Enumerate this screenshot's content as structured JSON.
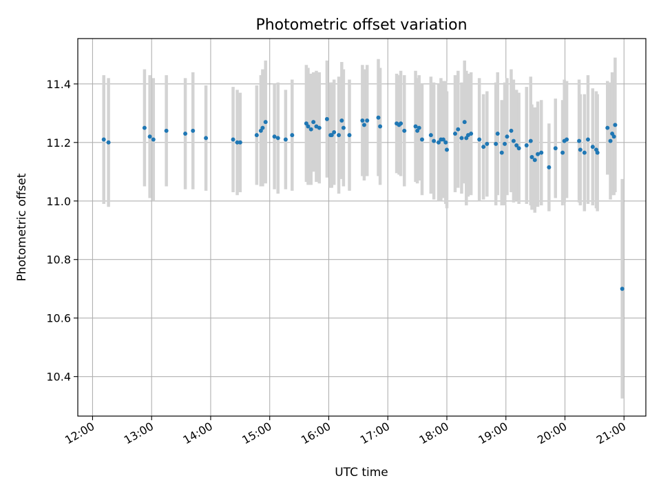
{
  "chart_data": {
    "type": "scatter",
    "title": "Photometric offset variation",
    "xlabel": "UTC time",
    "ylabel": "Photometric offset",
    "x_unit": "hours UTC",
    "xlim": [
      11.75,
      21.37
    ],
    "ylim": [
      10.265,
      11.555
    ],
    "xticks": [
      12,
      13,
      14,
      15,
      16,
      17,
      18,
      19,
      20,
      21
    ],
    "xtick_labels": [
      "12:00",
      "13:00",
      "14:00",
      "15:00",
      "16:00",
      "17:00",
      "18:00",
      "19:00",
      "20:00",
      "21:00"
    ],
    "yticks": [
      10.4,
      10.6,
      10.8,
      11.0,
      11.2,
      11.4
    ],
    "ytick_labels": [
      "10.4",
      "10.6",
      "10.8",
      "11.0",
      "11.2",
      "11.4"
    ],
    "grid": true,
    "point_color": "#1f77b4",
    "errorbar_color": "#d3d3d3",
    "points": [
      [
        12.19,
        11.21,
        0.22
      ],
      [
        12.27,
        11.2,
        0.22
      ],
      [
        12.88,
        11.25,
        0.2
      ],
      [
        12.97,
        11.22,
        0.21
      ],
      [
        13.03,
        11.21,
        0.21
      ],
      [
        13.25,
        11.24,
        0.19
      ],
      [
        13.57,
        11.23,
        0.19
      ],
      [
        13.7,
        11.24,
        0.2
      ],
      [
        13.92,
        11.215,
        0.18
      ],
      [
        14.38,
        11.21,
        0.18
      ],
      [
        14.45,
        11.2,
        0.18
      ],
      [
        14.5,
        11.2,
        0.17
      ],
      [
        14.78,
        11.225,
        0.17
      ],
      [
        14.85,
        11.24,
        0.19
      ],
      [
        14.88,
        11.25,
        0.2
      ],
      [
        14.93,
        11.27,
        0.21
      ],
      [
        15.08,
        11.22,
        0.18
      ],
      [
        15.14,
        11.215,
        0.19
      ],
      [
        15.27,
        11.21,
        0.17
      ],
      [
        15.38,
        11.225,
        0.19
      ],
      [
        15.62,
        11.265,
        0.2
      ],
      [
        15.65,
        11.255,
        0.2
      ],
      [
        15.7,
        11.245,
        0.19
      ],
      [
        15.74,
        11.27,
        0.17
      ],
      [
        15.79,
        11.255,
        0.19
      ],
      [
        15.84,
        11.25,
        0.19
      ],
      [
        15.97,
        11.28,
        0.2
      ],
      [
        16.03,
        11.225,
        0.18
      ],
      [
        16.05,
        11.225,
        0.18
      ],
      [
        16.09,
        11.235,
        0.18
      ],
      [
        16.17,
        11.225,
        0.2
      ],
      [
        16.22,
        11.275,
        0.2
      ],
      [
        16.25,
        11.25,
        0.2
      ],
      [
        16.35,
        11.225,
        0.19
      ],
      [
        16.57,
        11.275,
        0.19
      ],
      [
        16.6,
        11.26,
        0.19
      ],
      [
        16.65,
        11.275,
        0.19
      ],
      [
        16.84,
        11.285,
        0.2
      ],
      [
        16.87,
        11.255,
        0.2
      ],
      [
        17.15,
        11.265,
        0.17
      ],
      [
        17.19,
        11.26,
        0.17
      ],
      [
        17.22,
        11.265,
        0.18
      ],
      [
        17.28,
        11.24,
        0.19
      ],
      [
        17.47,
        11.255,
        0.19
      ],
      [
        17.5,
        11.24,
        0.18
      ],
      [
        17.53,
        11.25,
        0.18
      ],
      [
        17.58,
        11.21,
        0.19
      ],
      [
        17.73,
        11.225,
        0.2
      ],
      [
        17.78,
        11.205,
        0.2
      ],
      [
        17.86,
        11.2,
        0.2
      ],
      [
        17.9,
        11.21,
        0.21
      ],
      [
        17.94,
        11.21,
        0.2
      ],
      [
        17.98,
        11.2,
        0.21
      ],
      [
        18.0,
        11.175,
        0.2
      ],
      [
        18.14,
        11.23,
        0.2
      ],
      [
        18.19,
        11.245,
        0.2
      ],
      [
        18.25,
        11.215,
        0.19
      ],
      [
        18.3,
        11.27,
        0.21
      ],
      [
        18.33,
        11.215,
        0.23
      ],
      [
        18.36,
        11.225,
        0.21
      ],
      [
        18.41,
        11.23,
        0.21
      ],
      [
        18.55,
        11.21,
        0.21
      ],
      [
        18.62,
        11.185,
        0.18
      ],
      [
        18.68,
        11.195,
        0.18
      ],
      [
        18.83,
        11.195,
        0.21
      ],
      [
        18.86,
        11.23,
        0.21
      ],
      [
        18.93,
        11.165,
        0.18
      ],
      [
        18.98,
        11.195,
        0.21
      ],
      [
        19.02,
        11.22,
        0.2
      ],
      [
        19.09,
        11.24,
        0.21
      ],
      [
        19.13,
        11.205,
        0.21
      ],
      [
        19.18,
        11.19,
        0.19
      ],
      [
        19.22,
        11.18,
        0.19
      ],
      [
        19.35,
        11.19,
        0.2
      ],
      [
        19.42,
        11.205,
        0.22
      ],
      [
        19.44,
        11.15,
        0.18
      ],
      [
        19.49,
        11.14,
        0.18
      ],
      [
        19.54,
        11.16,
        0.18
      ],
      [
        19.6,
        11.165,
        0.18
      ],
      [
        19.73,
        11.115,
        0.15
      ],
      [
        19.84,
        11.18,
        0.17
      ],
      [
        19.96,
        11.165,
        0.18
      ],
      [
        19.99,
        11.205,
        0.21
      ],
      [
        20.03,
        11.21,
        0.2
      ],
      [
        20.24,
        11.205,
        0.21
      ],
      [
        20.26,
        11.175,
        0.19
      ],
      [
        20.33,
        11.165,
        0.2
      ],
      [
        20.39,
        11.21,
        0.22
      ],
      [
        20.47,
        11.185,
        0.2
      ],
      [
        20.53,
        11.175,
        0.2
      ],
      [
        20.55,
        11.165,
        0.2
      ],
      [
        20.72,
        11.25,
        0.16
      ],
      [
        20.77,
        11.205,
        0.2
      ],
      [
        20.8,
        11.23,
        0.21
      ],
      [
        20.83,
        11.22,
        0.2
      ],
      [
        20.85,
        11.26,
        0.23
      ],
      [
        20.97,
        10.7,
        0.375
      ]
    ]
  }
}
